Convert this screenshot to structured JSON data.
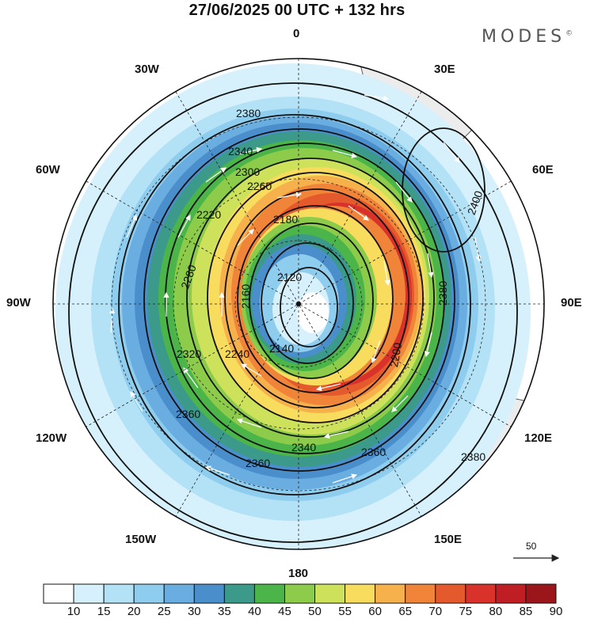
{
  "title": "27/06/2025  00 UTC  + 132 hrs",
  "brand": "MODES",
  "brand_mark": "©",
  "map": {
    "projection": "south-polar-stereographic",
    "field": "geopotential height contours with wind speed shading and wind vectors",
    "longitude_labels": {
      "top": "0",
      "bottom": "180",
      "left": "90W",
      "right": "90E",
      "upper_left": "30W",
      "upper_right": "30E",
      "mid_left": "60W",
      "mid_right": "60E",
      "lower_left": "120W",
      "lower_right": "120E",
      "bottom_left": "150W",
      "bottom_right": "150E"
    },
    "contour_labels": [
      "2380",
      "2340",
      "2300",
      "2260",
      "2220",
      "2180",
      "2120",
      "2160",
      "2140",
      "2200",
      "2240",
      "2280",
      "2320",
      "2360",
      "2400",
      "2380",
      "2340",
      "2360",
      "2380",
      "2360"
    ],
    "vector_reference": "50"
  },
  "colorbar": {
    "ticks": [
      "10",
      "15",
      "20",
      "25",
      "30",
      "35",
      "40",
      "45",
      "50",
      "55",
      "60",
      "65",
      "70",
      "75",
      "80",
      "85",
      "90"
    ],
    "colors": [
      "#ffffff",
      "#d6f1fc",
      "#b3e2f6",
      "#8fcdef",
      "#6aaee1",
      "#4a8fcc",
      "#3c9a8a",
      "#4bb54a",
      "#8ccc4a",
      "#cde25a",
      "#f7dc5e",
      "#f7b14c",
      "#f0853a",
      "#e55a2c",
      "#d8322a",
      "#be1e24",
      "#9b161a"
    ]
  },
  "palette": {
    "land": "#ececec",
    "coast": "#555555"
  }
}
